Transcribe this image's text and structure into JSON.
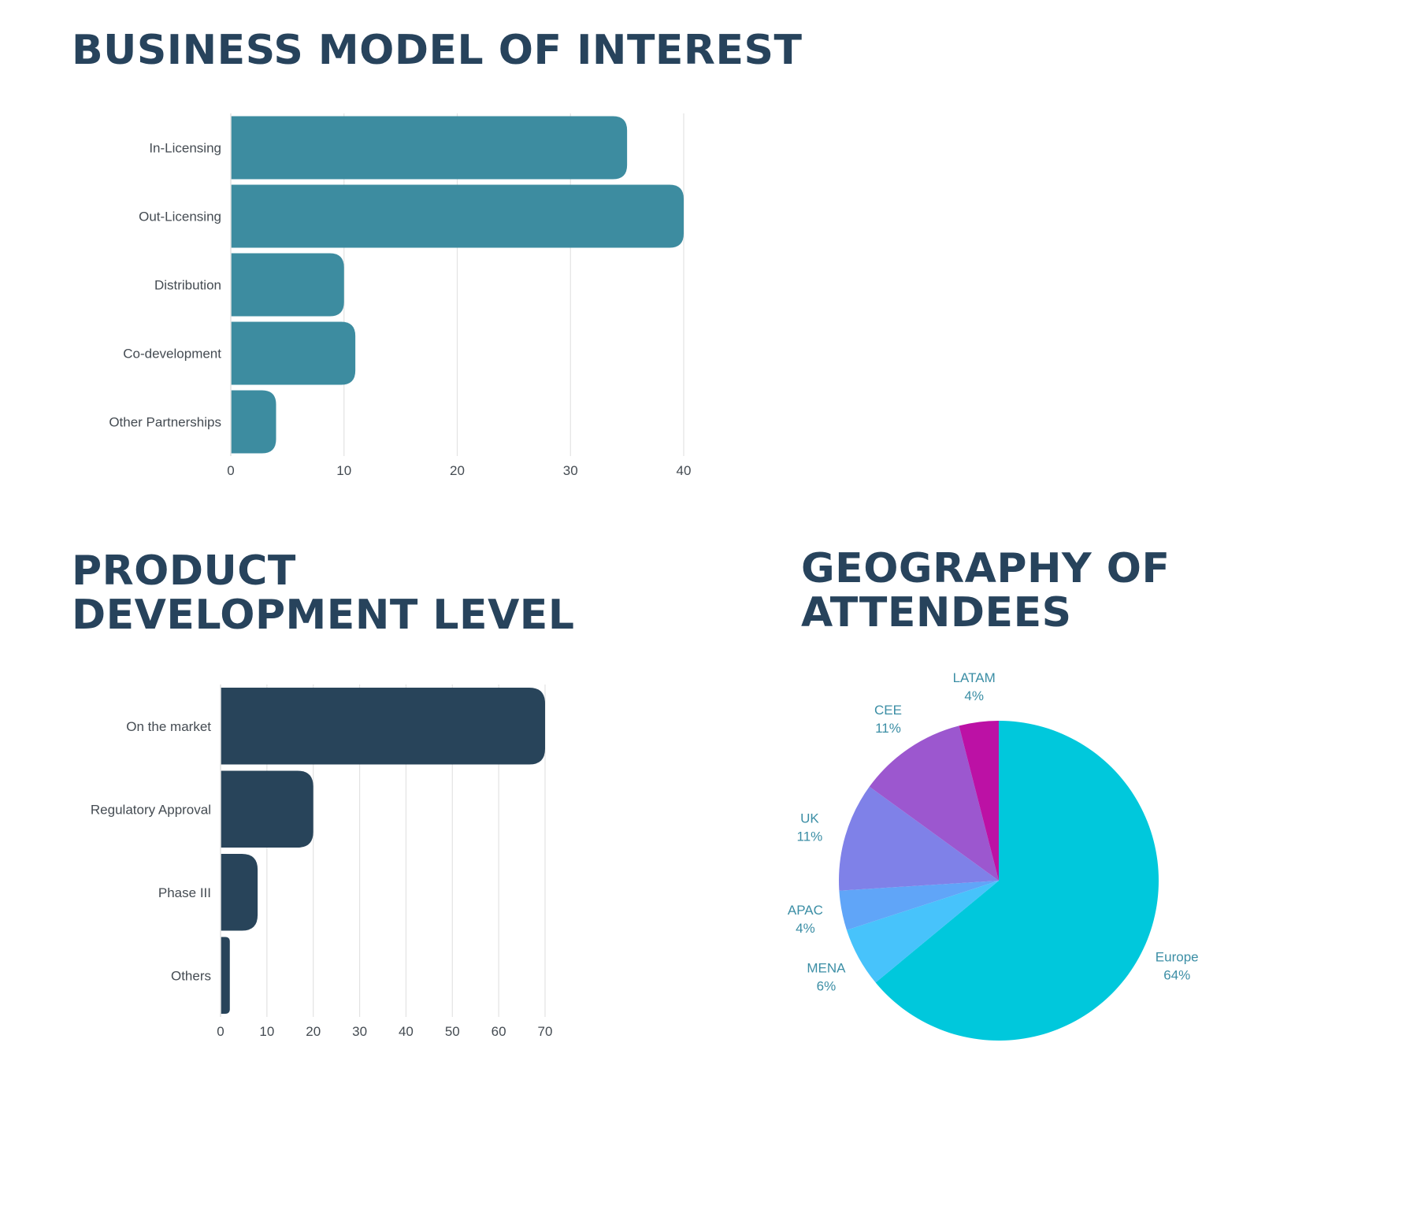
{
  "charts": {
    "business_title": "BUSINESS MODEL OF INTEREST",
    "product_title_line1": "PRODUCT",
    "product_title_line2": "DEVELOPMENT LEVEL",
    "geo_title_line1": "GEOGRAPHY OF",
    "geo_title_line2": "ATTENDEES"
  },
  "colors": {
    "heading": "#27435c",
    "business_bar": "#3d8ca0",
    "product_bar": "#28445a",
    "gridline": "#e3e3e3",
    "pie_label": "#3b8ea5"
  },
  "chart_data": [
    {
      "type": "bar",
      "orientation": "horizontal",
      "title": "BUSINESS MODEL OF INTEREST",
      "categories": [
        "In-Licensing",
        "Out-Licensing",
        "Distribution",
        "Co-development",
        "Other Partnerships"
      ],
      "values": [
        35,
        40,
        10,
        11,
        4
      ],
      "xlim": [
        0,
        40
      ],
      "xticks": [
        "0",
        "10",
        "20",
        "30",
        "40"
      ],
      "grid": true
    },
    {
      "type": "bar",
      "orientation": "horizontal",
      "title": "PRODUCT DEVELOPMENT LEVEL",
      "categories": [
        "On the market",
        "Regulatory Approval",
        "Phase III",
        "Others"
      ],
      "values": [
        70,
        20,
        8,
        2
      ],
      "xlim": [
        0,
        70
      ],
      "xticks": [
        "0",
        "10",
        "20",
        "30",
        "40",
        "50",
        "60",
        "70"
      ],
      "grid": true
    },
    {
      "type": "pie",
      "title": "GEOGRAPHY OF ATTENDEES",
      "slices": [
        {
          "label": "Europe",
          "value": 64,
          "display": "64%",
          "color": "#00c8dc"
        },
        {
          "label": "MENA",
          "value": 6,
          "display": "6%",
          "color": "#47c3fb"
        },
        {
          "label": "APAC",
          "value": 4,
          "display": "4%",
          "color": "#60a5f8"
        },
        {
          "label": "UK",
          "value": 11,
          "display": "11%",
          "color": "#7f81e8"
        },
        {
          "label": "CEE",
          "value": 11,
          "display": "11%",
          "color": "#9c57cf"
        },
        {
          "label": "LATAM",
          "value": 4,
          "display": "4%",
          "color": "#bc11a5"
        }
      ],
      "start": "12 o'clock",
      "direction": "clockwise"
    }
  ]
}
